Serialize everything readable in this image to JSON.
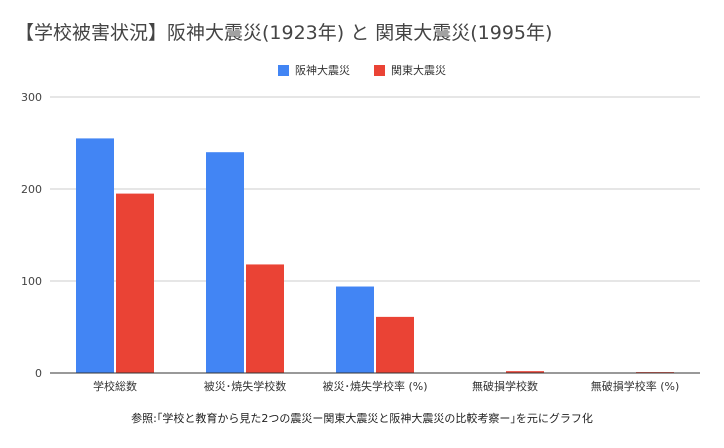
{
  "chart_data": {
    "type": "bar",
    "title": "【学校被害状況】阪神大震災(1923年) と 関東大震災(1995年)",
    "categories": [
      "学校総数",
      "被災･焼失学校数",
      "被災･焼失学校率 (%)",
      "無破損学校数",
      "無破損学校率 (%)"
    ],
    "series": [
      {
        "name": "阪神大震災",
        "color": "#4285f4",
        "values": [
          255,
          240,
          94,
          0,
          0
        ]
      },
      {
        "name": "関東大震災",
        "color": "#ea4335",
        "values": [
          195,
          118,
          61,
          2,
          1
        ]
      }
    ],
    "y_ticks": [
      "0",
      "100",
      "200",
      "300"
    ],
    "ylim": [
      0,
      300
    ],
    "grid": true,
    "legend_position": "top-center",
    "xlabel": "",
    "ylabel": ""
  },
  "source_note": "参照:｢学校と教育から見た2つの震災ー関東大震災と阪神大震災の比較考察ー｣を元にグラフ化"
}
